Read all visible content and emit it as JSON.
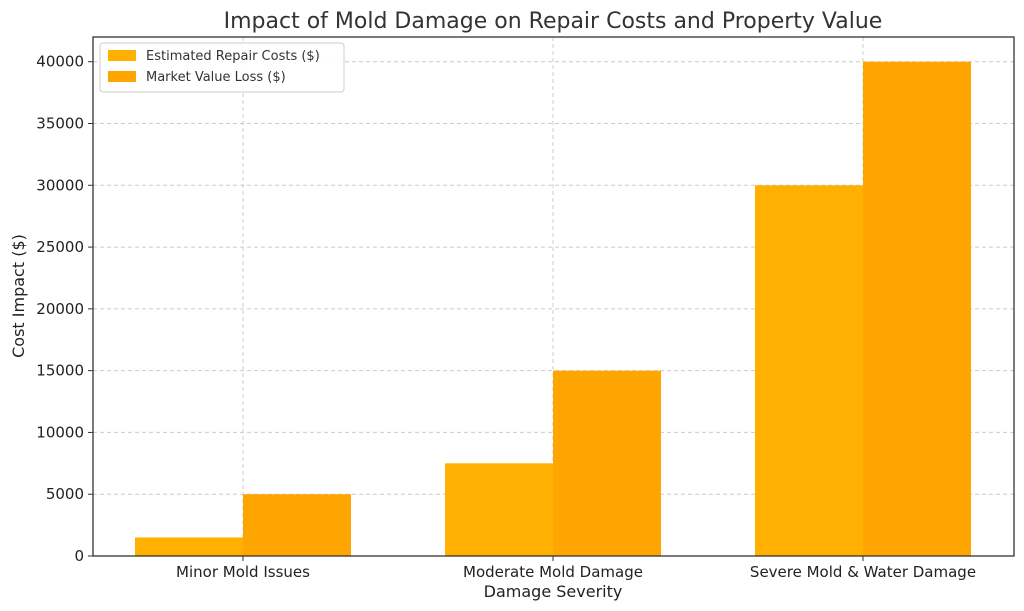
{
  "chart_data": {
    "type": "bar",
    "title": "Impact of Mold Damage on Repair Costs and Property Value",
    "xlabel": "Damage Severity",
    "ylabel": "Cost Impact ($)",
    "categories": [
      "Minor Mold Issues",
      "Moderate Mold Damage",
      "Severe Mold & Water Damage"
    ],
    "series": [
      {
        "name": "Estimated Repair Costs ($)",
        "values": [
          1500,
          7500,
          30000
        ],
        "color": "#FFB000"
      },
      {
        "name": "Market Value Loss ($)",
        "values": [
          5000,
          15000,
          40000
        ],
        "color": "#FFA500"
      }
    ],
    "ylim": [
      0,
      42000
    ],
    "yticks": [
      0,
      5000,
      10000,
      15000,
      20000,
      25000,
      30000,
      35000,
      40000
    ],
    "grid": true,
    "legend": "top-left"
  }
}
